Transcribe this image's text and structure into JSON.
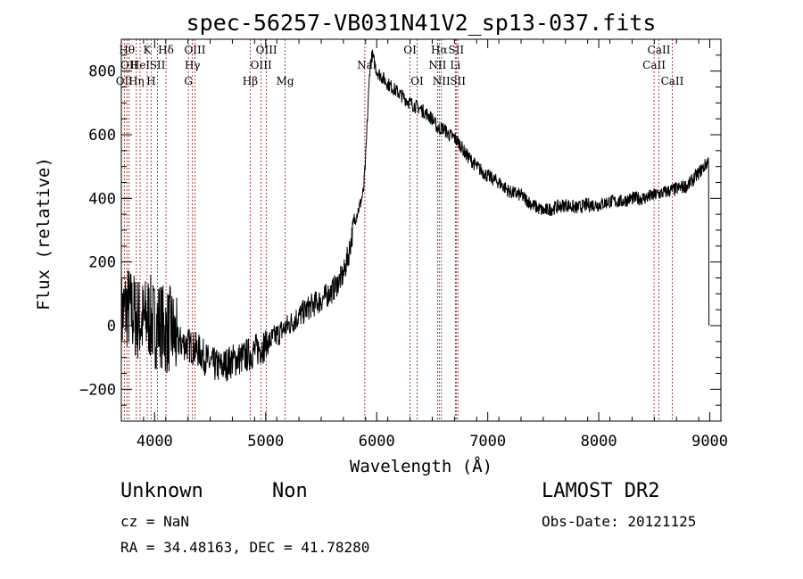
{
  "chart_data": {
    "type": "line",
    "title": "spec-56257-VB031N41V2_sp13-037.fits",
    "xlabel": "Wavelength (Å)",
    "ylabel": "Flux (relative)",
    "xlim": [
      3700,
      9100
    ],
    "ylim": [
      -300,
      900
    ],
    "x_ticks": [
      4000,
      5000,
      6000,
      7000,
      8000,
      9000
    ],
    "x_tick_labels": [
      "4000",
      "5000",
      "6000",
      "7000",
      "8000",
      "9000"
    ],
    "y_ticks": [
      -200,
      0,
      200,
      400,
      600,
      800
    ],
    "y_tick_labels": [
      "−200",
      "0",
      "200",
      "400",
      "600",
      "800"
    ],
    "grid": false,
    "line_color": "#000000",
    "marker_color": "#8b1a1a",
    "series": [
      {
        "x": [
          3700,
          3750,
          3800,
          3850,
          3900,
          3950,
          4000,
          4050,
          4100,
          4150,
          4200,
          4300,
          4400,
          4500,
          4600,
          4700,
          4800,
          4900,
          5000,
          5100,
          5200,
          5300,
          5400,
          5500,
          5600,
          5700,
          5750,
          5800,
          5850,
          5880,
          5900,
          5920,
          5940,
          5960,
          6000,
          6100,
          6200,
          6300,
          6400,
          6500,
          6550,
          6600,
          6650,
          6700,
          6750,
          6800,
          6900,
          7000,
          7100,
          7200,
          7300,
          7400,
          7500,
          7600,
          7700,
          7800,
          7900,
          8000,
          8100,
          8200,
          8300,
          8400,
          8500,
          8600,
          8700,
          8800,
          8900,
          8950,
          8990
        ],
        "y": [
          30,
          60,
          40,
          20,
          10,
          30,
          0,
          10,
          -20,
          -10,
          -50,
          -60,
          -80,
          -120,
          -130,
          -110,
          -100,
          -80,
          -60,
          -30,
          0,
          30,
          60,
          80,
          110,
          160,
          230,
          330,
          380,
          420,
          520,
          680,
          820,
          850,
          800,
          760,
          730,
          700,
          680,
          650,
          620,
          620,
          600,
          590,
          570,
          540,
          500,
          470,
          450,
          420,
          410,
          380,
          360,
          370,
          380,
          370,
          380,
          380,
          390,
          390,
          400,
          400,
          410,
          420,
          430,
          440,
          480,
          500,
          520
        ]
      }
    ],
    "line_markers": [
      {
        "wavelength": 3727,
        "label": "OII",
        "row": 2
      },
      {
        "wavelength": 3750,
        "label": "Hθ",
        "row": 0
      },
      {
        "wavelength": 3770,
        "label": "OII",
        "row": 1
      },
      {
        "wavelength": 3835,
        "label": "Hη",
        "row": 2
      },
      {
        "wavelength": 3869,
        "label": "HeI",
        "row": 1
      },
      {
        "wavelength": 3933,
        "label": "K",
        "row": 0
      },
      {
        "wavelength": 3968,
        "label": "H",
        "row": 2
      },
      {
        "wavelength": 4026,
        "label": "SII",
        "row": 1
      },
      {
        "wavelength": 4102,
        "label": "Hδ",
        "row": 0
      },
      {
        "wavelength": 4304,
        "label": "G",
        "row": 2
      },
      {
        "wavelength": 4340,
        "label": "Hγ",
        "row": 1
      },
      {
        "wavelength": 4363,
        "label": "OIII",
        "row": 0
      },
      {
        "wavelength": 4861,
        "label": "Hβ",
        "row": 2
      },
      {
        "wavelength": 4959,
        "label": "OIII",
        "row": 1
      },
      {
        "wavelength": 5007,
        "label": "OIII",
        "row": 0
      },
      {
        "wavelength": 5175,
        "label": "Mg",
        "row": 2
      },
      {
        "wavelength": 5893,
        "label": "Na",
        "row": 1
      },
      {
        "wavelength": 6300,
        "label": "OI",
        "row": 0
      },
      {
        "wavelength": 6364,
        "label": "OI",
        "row": 2
      },
      {
        "wavelength": 6548,
        "label": "NII",
        "row": 1
      },
      {
        "wavelength": 6563,
        "label": "Hα",
        "row": 0
      },
      {
        "wavelength": 6583,
        "label": "NII",
        "row": 2
      },
      {
        "wavelength": 6708,
        "label": "Li",
        "row": 1
      },
      {
        "wavelength": 6716,
        "label": "SII",
        "row": 0
      },
      {
        "wavelength": 6731,
        "label": "SII",
        "row": 2
      },
      {
        "wavelength": 8498,
        "label": "CaII",
        "row": 1
      },
      {
        "wavelength": 8542,
        "label": "CaII",
        "row": 0
      },
      {
        "wavelength": 8662,
        "label": "CaII",
        "row": 2
      }
    ]
  },
  "info": {
    "class_label": "Unknown",
    "subclass_label": "Non",
    "survey": "LAMOST DR2",
    "cz": "cz = NaN",
    "obs_date": "Obs-Date: 20121125",
    "coords": "RA =  34.48163, DEC =  41.78280"
  }
}
